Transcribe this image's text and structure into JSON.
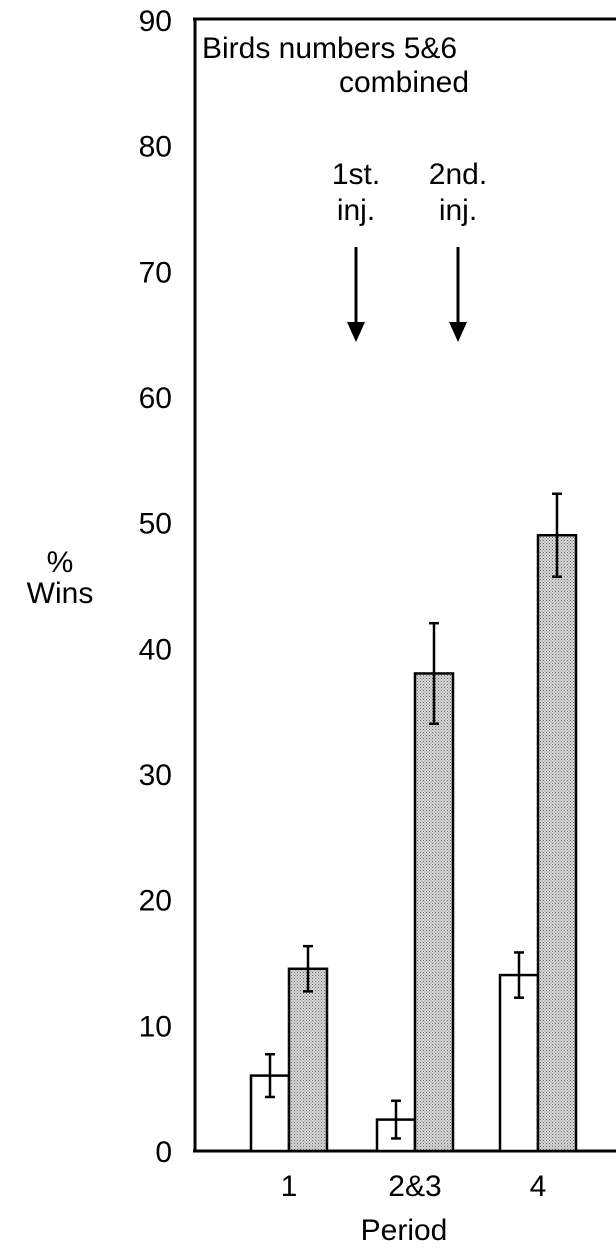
{
  "chart_data": {
    "type": "bar",
    "title": "Birds numbers 5&6",
    "subtitle": "combined",
    "xlabel": "Period",
    "ylabel": "%",
    "ylabel_line2": "Wins",
    "ylim": [
      0,
      90
    ],
    "yticks": [
      "0",
      "10",
      "20",
      "30",
      "40",
      "50",
      "60",
      "70",
      "80",
      "90"
    ],
    "categories": [
      "1",
      "2&3",
      "4"
    ],
    "series": [
      {
        "fill": "#ffffff",
        "values": [
          6,
          2.5,
          14
        ],
        "errors": [
          1.7,
          1.5,
          1.8
        ]
      },
      {
        "fill": "#bfbfbf",
        "values": [
          14.5,
          38,
          49
        ],
        "errors": [
          1.8,
          4,
          3.3
        ]
      }
    ],
    "annotations": [
      {
        "line1": "1st.",
        "line2": "inj.",
        "category_index": 1,
        "side": "before"
      },
      {
        "line1": "2nd.",
        "line2": "inj.",
        "category_index": 1,
        "side": "center"
      }
    ],
    "grid": false,
    "legend": "none"
  }
}
